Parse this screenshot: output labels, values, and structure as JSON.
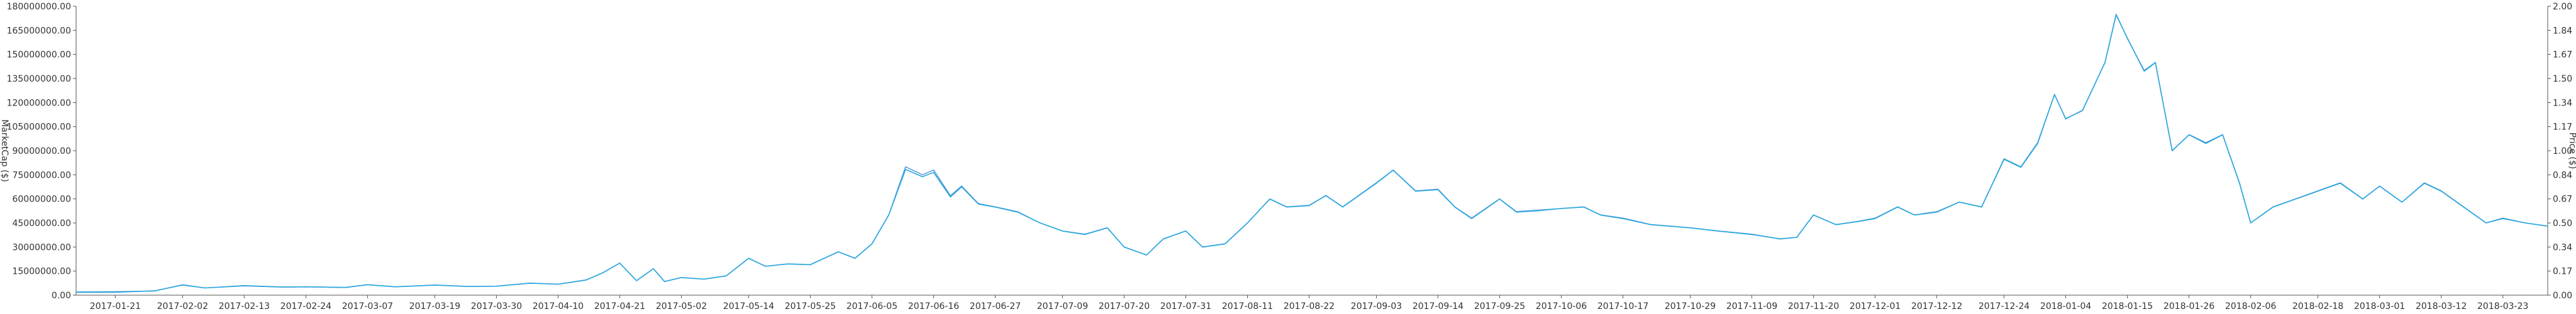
{
  "chart_data": {
    "type": "line",
    "title": "",
    "xlabel": "",
    "y_left_label": "MarketCap ($)",
    "y_right_label": "Price ($)",
    "y_left_range": [
      0,
      180000000
    ],
    "y_right_range": [
      0,
      2.0
    ],
    "y_left_ticks": [
      "0.00",
      "15000000.00",
      "30000000.00",
      "45000000.00",
      "60000000.00",
      "75000000.00",
      "90000000.00",
      "105000000.00",
      "120000000.00",
      "135000000.00",
      "150000000.00",
      "165000000.00",
      "180000000.00"
    ],
    "y_right_ticks": [
      "0.00",
      "0.17",
      "0.34",
      "0.50",
      "0.67",
      "0.84",
      "1.00",
      "1.17",
      "1.34",
      "1.50",
      "1.67",
      "1.84",
      "2.00"
    ],
    "x_range": [
      "2017-01-14",
      "2018-03-31"
    ],
    "x_ticks": [
      "2017-01-21",
      "2017-02-02",
      "2017-02-13",
      "2017-02-24",
      "2017-03-07",
      "2017-03-19",
      "2017-03-30",
      "2017-04-10",
      "2017-04-21",
      "2017-05-02",
      "2017-05-14",
      "2017-05-25",
      "2017-06-05",
      "2017-06-16",
      "2017-06-27",
      "2017-07-09",
      "2017-07-20",
      "2017-07-31",
      "2017-08-11",
      "2017-08-22",
      "2017-09-03",
      "2017-09-14",
      "2017-09-25",
      "2017-10-06",
      "2017-10-17",
      "2017-10-29",
      "2017-11-09",
      "2017-11-20",
      "2017-12-01",
      "2017-12-12",
      "2017-12-24",
      "2018-01-04",
      "2018-01-15",
      "2018-01-26",
      "2018-02-06",
      "2018-02-18",
      "2018-03-01",
      "2018-03-12",
      "2018-03-23"
    ],
    "grid": false,
    "colors": {
      "marketcap": "#5b9bd5",
      "price": "#2aa8e0",
      "axis": "#555555"
    },
    "series": [
      {
        "axis": "left",
        "points": [
          [
            "2017-01-14",
            2000000
          ],
          [
            "2017-01-21",
            2200000
          ],
          [
            "2017-01-28",
            2600000
          ],
          [
            "2017-02-02",
            6500000
          ],
          [
            "2017-02-06",
            4500000
          ],
          [
            "2017-02-13",
            5800000
          ],
          [
            "2017-02-20",
            5000000
          ],
          [
            "2017-02-24",
            5200000
          ],
          [
            "2017-03-03",
            4800000
          ],
          [
            "2017-03-07",
            6500000
          ],
          [
            "2017-03-12",
            5200000
          ],
          [
            "2017-03-19",
            6300000
          ],
          [
            "2017-03-25",
            5400000
          ],
          [
            "2017-03-30",
            5600000
          ],
          [
            "2017-04-05",
            7500000
          ],
          [
            "2017-04-10",
            6800000
          ],
          [
            "2017-04-15",
            9500000
          ],
          [
            "2017-04-18",
            14000000
          ],
          [
            "2017-04-21",
            20000000
          ],
          [
            "2017-04-24",
            9000000
          ],
          [
            "2017-04-27",
            16500000
          ],
          [
            "2017-04-29",
            8500000
          ],
          [
            "2017-05-02",
            11000000
          ],
          [
            "2017-05-06",
            10000000
          ],
          [
            "2017-05-10",
            12000000
          ],
          [
            "2017-05-14",
            23000000
          ],
          [
            "2017-05-17",
            18000000
          ],
          [
            "2017-05-21",
            19500000
          ],
          [
            "2017-05-25",
            19000000
          ],
          [
            "2017-05-30",
            27000000
          ],
          [
            "2017-06-02",
            23000000
          ],
          [
            "2017-06-05",
            32000000
          ],
          [
            "2017-06-08",
            50000000
          ],
          [
            "2017-06-11",
            80000000
          ],
          [
            "2017-06-14",
            75000000
          ],
          [
            "2017-06-16",
            78000000
          ],
          [
            "2017-06-19",
            62000000
          ],
          [
            "2017-06-21",
            68000000
          ],
          [
            "2017-06-24",
            57000000
          ],
          [
            "2017-06-27",
            55000000
          ],
          [
            "2017-07-01",
            52000000
          ],
          [
            "2017-07-05",
            45000000
          ],
          [
            "2017-07-09",
            40000000
          ],
          [
            "2017-07-13",
            38000000
          ],
          [
            "2017-07-17",
            42000000
          ],
          [
            "2017-07-20",
            30000000
          ],
          [
            "2017-07-24",
            25000000
          ],
          [
            "2017-07-27",
            35000000
          ],
          [
            "2017-07-31",
            40000000
          ],
          [
            "2017-08-03",
            30000000
          ],
          [
            "2017-08-07",
            32000000
          ],
          [
            "2017-08-11",
            45000000
          ],
          [
            "2017-08-15",
            60000000
          ],
          [
            "2017-08-18",
            55000000
          ],
          [
            "2017-08-22",
            56000000
          ],
          [
            "2017-08-25",
            62000000
          ],
          [
            "2017-08-28",
            55000000
          ],
          [
            "2017-09-03",
            70000000
          ],
          [
            "2017-09-06",
            78000000
          ],
          [
            "2017-09-10",
            65000000
          ],
          [
            "2017-09-14",
            66000000
          ],
          [
            "2017-09-17",
            55000000
          ],
          [
            "2017-09-20",
            48000000
          ],
          [
            "2017-09-25",
            60000000
          ],
          [
            "2017-09-28",
            52000000
          ],
          [
            "2017-10-02",
            53000000
          ],
          [
            "2017-10-06",
            54000000
          ],
          [
            "2017-10-10",
            55000000
          ],
          [
            "2017-10-13",
            50000000
          ],
          [
            "2017-10-17",
            48000000
          ],
          [
            "2017-10-22",
            44000000
          ],
          [
            "2017-10-29",
            42000000
          ],
          [
            "2017-11-03",
            40000000
          ],
          [
            "2017-11-09",
            38000000
          ],
          [
            "2017-11-14",
            35000000
          ],
          [
            "2017-11-17",
            36000000
          ],
          [
            "2017-11-20",
            50000000
          ],
          [
            "2017-11-24",
            44000000
          ],
          [
            "2017-11-28",
            46000000
          ],
          [
            "2017-12-01",
            48000000
          ],
          [
            "2017-12-05",
            55000000
          ],
          [
            "2017-12-08",
            50000000
          ],
          [
            "2017-12-12",
            52000000
          ],
          [
            "2017-12-16",
            58000000
          ],
          [
            "2017-12-20",
            55000000
          ],
          [
            "2017-12-24",
            85000000
          ],
          [
            "2017-12-27",
            80000000
          ],
          [
            "2017-12-30",
            95000000
          ],
          [
            "2018-01-02",
            125000000
          ],
          [
            "2018-01-04",
            110000000
          ],
          [
            "2018-01-07",
            115000000
          ],
          [
            "2018-01-11",
            145000000
          ],
          [
            "2018-01-13",
            175000000
          ],
          [
            "2018-01-15",
            160000000
          ],
          [
            "2018-01-18",
            140000000
          ],
          [
            "2018-01-20",
            145000000
          ],
          [
            "2018-01-23",
            90000000
          ],
          [
            "2018-01-26",
            100000000
          ],
          [
            "2018-01-29",
            95000000
          ],
          [
            "2018-02-01",
            100000000
          ],
          [
            "2018-02-04",
            70000000
          ],
          [
            "2018-02-06",
            45000000
          ],
          [
            "2018-02-10",
            55000000
          ],
          [
            "2018-02-14",
            60000000
          ],
          [
            "2018-02-18",
            65000000
          ],
          [
            "2018-02-22",
            70000000
          ],
          [
            "2018-02-26",
            60000000
          ],
          [
            "2018-03-01",
            68000000
          ],
          [
            "2018-03-05",
            58000000
          ],
          [
            "2018-03-09",
            70000000
          ],
          [
            "2018-03-12",
            65000000
          ],
          [
            "2018-03-16",
            55000000
          ],
          [
            "2018-03-20",
            45000000
          ],
          [
            "2018-03-23",
            48000000
          ],
          [
            "2018-03-27",
            45000000
          ],
          [
            "2018-03-31",
            43000000
          ]
        ]
      },
      {
        "axis": "right",
        "points": [
          [
            "2017-01-14",
            0.02
          ],
          [
            "2017-01-21",
            0.02
          ],
          [
            "2017-01-28",
            0.03
          ],
          [
            "2017-02-02",
            0.07
          ],
          [
            "2017-02-06",
            0.05
          ],
          [
            "2017-02-13",
            0.066
          ],
          [
            "2017-02-20",
            0.056
          ],
          [
            "2017-02-24",
            0.058
          ],
          [
            "2017-03-03",
            0.053
          ],
          [
            "2017-03-07",
            0.072
          ],
          [
            "2017-03-12",
            0.058
          ],
          [
            "2017-03-19",
            0.07
          ],
          [
            "2017-03-25",
            0.06
          ],
          [
            "2017-03-30",
            0.062
          ],
          [
            "2017-04-05",
            0.083
          ],
          [
            "2017-04-10",
            0.076
          ],
          [
            "2017-04-15",
            0.105
          ],
          [
            "2017-04-18",
            0.155
          ],
          [
            "2017-04-21",
            0.222
          ],
          [
            "2017-04-24",
            0.1
          ],
          [
            "2017-04-27",
            0.183
          ],
          [
            "2017-04-29",
            0.094
          ],
          [
            "2017-05-02",
            0.122
          ],
          [
            "2017-05-06",
            0.111
          ],
          [
            "2017-05-10",
            0.133
          ],
          [
            "2017-05-14",
            0.255
          ],
          [
            "2017-05-17",
            0.2
          ],
          [
            "2017-05-21",
            0.216
          ],
          [
            "2017-05-25",
            0.211
          ],
          [
            "2017-05-30",
            0.3
          ],
          [
            "2017-06-02",
            0.255
          ],
          [
            "2017-06-05",
            0.355
          ],
          [
            "2017-06-08",
            0.555
          ],
          [
            "2017-06-11",
            0.87
          ],
          [
            "2017-06-14",
            0.82
          ],
          [
            "2017-06-16",
            0.85
          ],
          [
            "2017-06-19",
            0.68
          ],
          [
            "2017-06-21",
            0.75
          ],
          [
            "2017-06-24",
            0.63
          ],
          [
            "2017-06-27",
            0.61
          ],
          [
            "2017-07-01",
            0.575
          ],
          [
            "2017-07-05",
            0.5
          ],
          [
            "2017-07-09",
            0.444
          ],
          [
            "2017-07-13",
            0.42
          ],
          [
            "2017-07-17",
            0.466
          ],
          [
            "2017-07-20",
            0.333
          ],
          [
            "2017-07-24",
            0.278
          ],
          [
            "2017-07-27",
            0.39
          ],
          [
            "2017-07-31",
            0.444
          ],
          [
            "2017-08-03",
            0.333
          ],
          [
            "2017-08-07",
            0.355
          ],
          [
            "2017-08-11",
            0.5
          ],
          [
            "2017-08-15",
            0.665
          ],
          [
            "2017-08-18",
            0.61
          ],
          [
            "2017-08-22",
            0.62
          ],
          [
            "2017-08-25",
            0.69
          ],
          [
            "2017-08-28",
            0.61
          ],
          [
            "2017-09-03",
            0.775
          ],
          [
            "2017-09-06",
            0.865
          ],
          [
            "2017-09-10",
            0.72
          ],
          [
            "2017-09-14",
            0.73
          ],
          [
            "2017-09-17",
            0.61
          ],
          [
            "2017-09-20",
            0.53
          ],
          [
            "2017-09-25",
            0.665
          ],
          [
            "2017-09-28",
            0.575
          ],
          [
            "2017-10-02",
            0.585
          ],
          [
            "2017-10-06",
            0.6
          ],
          [
            "2017-10-10",
            0.61
          ],
          [
            "2017-10-13",
            0.555
          ],
          [
            "2017-10-17",
            0.53
          ],
          [
            "2017-10-22",
            0.488
          ],
          [
            "2017-10-29",
            0.466
          ],
          [
            "2017-11-03",
            0.444
          ],
          [
            "2017-11-09",
            0.42
          ],
          [
            "2017-11-14",
            0.39
          ],
          [
            "2017-11-17",
            0.4
          ],
          [
            "2017-11-20",
            0.555
          ],
          [
            "2017-11-24",
            0.488
          ],
          [
            "2017-11-28",
            0.51
          ],
          [
            "2017-12-01",
            0.53
          ],
          [
            "2017-12-05",
            0.61
          ],
          [
            "2017-12-08",
            0.555
          ],
          [
            "2017-12-12",
            0.575
          ],
          [
            "2017-12-16",
            0.644
          ],
          [
            "2017-12-20",
            0.61
          ],
          [
            "2017-12-24",
            0.94
          ],
          [
            "2017-12-27",
            0.885
          ],
          [
            "2017-12-30",
            1.05
          ],
          [
            "2018-01-02",
            1.39
          ],
          [
            "2018-01-04",
            1.22
          ],
          [
            "2018-01-07",
            1.28
          ],
          [
            "2018-01-11",
            1.61
          ],
          [
            "2018-01-13",
            1.94
          ],
          [
            "2018-01-15",
            1.78
          ],
          [
            "2018-01-18",
            1.55
          ],
          [
            "2018-01-20",
            1.61
          ],
          [
            "2018-01-23",
            1.0
          ],
          [
            "2018-01-26",
            1.11
          ],
          [
            "2018-01-29",
            1.05
          ],
          [
            "2018-02-01",
            1.11
          ],
          [
            "2018-02-04",
            0.775
          ],
          [
            "2018-02-06",
            0.5
          ],
          [
            "2018-02-10",
            0.61
          ],
          [
            "2018-02-14",
            0.665
          ],
          [
            "2018-02-18",
            0.72
          ],
          [
            "2018-02-22",
            0.775
          ],
          [
            "2018-02-26",
            0.665
          ],
          [
            "2018-03-01",
            0.755
          ],
          [
            "2018-03-05",
            0.644
          ],
          [
            "2018-03-09",
            0.775
          ],
          [
            "2018-03-12",
            0.72
          ],
          [
            "2018-03-16",
            0.61
          ],
          [
            "2018-03-20",
            0.5
          ],
          [
            "2018-03-23",
            0.53
          ],
          [
            "2018-03-27",
            0.5
          ],
          [
            "2018-03-31",
            0.478
          ]
        ]
      }
    ]
  }
}
